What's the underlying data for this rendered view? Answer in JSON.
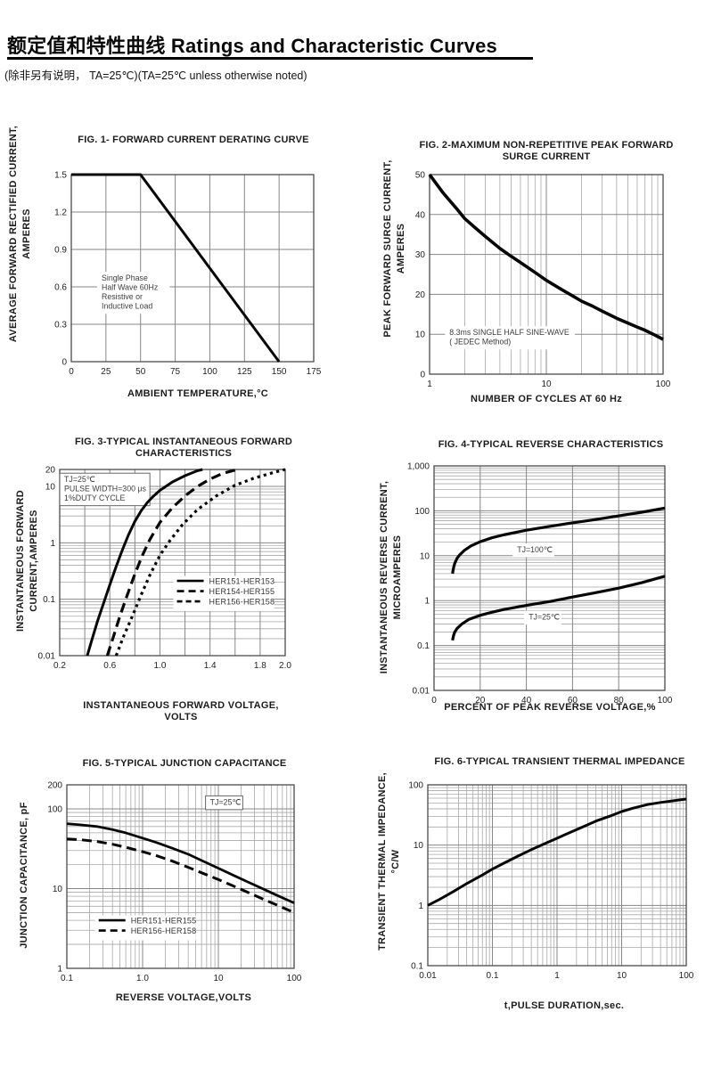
{
  "page": {
    "title": "额定值和特性曲线 Ratings and Characteristic Curves",
    "note": "(除非另有说明， TA=25℃)(TA=25℃  unless otherwise noted)"
  },
  "chart_data": [
    {
      "id": "fig1",
      "type": "line",
      "title": "FIG. 1- FORWARD CURRENT DERATING CURVE",
      "xlabel": "AMBIENT TEMPERATURE,°C",
      "ylabel": "AVERAGE FORWARD RECTIFIED CURRENT,\nAMPERES",
      "x": {
        "scale": "linear",
        "min": 0,
        "max": 175,
        "ticks": [
          0,
          25,
          50,
          75,
          100,
          125,
          150,
          175
        ],
        "labels": [
          "0",
          "25",
          "50",
          "75",
          "100",
          "125",
          "150",
          "175"
        ]
      },
      "y": {
        "scale": "linear",
        "min": 0,
        "max": 1.5,
        "ticks": [
          0,
          0.3,
          0.6,
          0.9,
          1.2,
          1.5
        ],
        "labels": [
          "0",
          "0.3",
          "0.6",
          "0.9",
          "1.2",
          "1.5"
        ]
      },
      "series": [
        {
          "name": "forward-current-derating",
          "dash": "solid",
          "width": 3,
          "points": [
            [
              0,
              1.5
            ],
            [
              50,
              1.5
            ],
            [
              150,
              0
            ]
          ]
        }
      ],
      "annotations": [
        {
          "fx": 0.125,
          "fy": 0.52,
          "box": false,
          "lines": [
            "Single Phase",
            "Half Wave 60Hz",
            "Resistive or",
            "Inductive Load"
          ]
        }
      ]
    },
    {
      "id": "fig2",
      "type": "line",
      "title": "FIG. 2-MAXIMUM NON-REPETITIVE PEAK FORWARD\nSURGE CURRENT",
      "xlabel": "NUMBER OF CYCLES AT 60 Hz",
      "ylabel": "PEAK FORWARD SURGE CURRENT,\nAMPERES",
      "x": {
        "scale": "log",
        "min": 1,
        "max": 100,
        "ticks": [
          1,
          10,
          100
        ],
        "labels": [
          "1",
          "10",
          "100"
        ]
      },
      "y": {
        "scale": "linear",
        "min": 0,
        "max": 50,
        "ticks": [
          0,
          10,
          20,
          30,
          40,
          50
        ],
        "labels": [
          "0",
          "10",
          "20",
          "30",
          "40",
          "50"
        ]
      },
      "series": [
        {
          "name": "peak-surge-current",
          "dash": "solid",
          "width": 3.6,
          "points": [
            [
              1,
              50
            ],
            [
              1.3,
              45.5
            ],
            [
              1.7,
              41.5
            ],
            [
              2,
              39
            ],
            [
              2.5,
              36.5
            ],
            [
              3,
              34.5
            ],
            [
              4,
              31.5
            ],
            [
              5,
              29.5
            ],
            [
              6,
              28
            ],
            [
              8,
              25.5
            ],
            [
              10,
              23.5
            ],
            [
              13,
              21.5
            ],
            [
              17,
              19.5
            ],
            [
              20,
              18.3
            ],
            [
              25,
              17
            ],
            [
              30,
              15.8
            ],
            [
              40,
              14
            ],
            [
              50,
              12.8
            ],
            [
              60,
              11.8
            ],
            [
              70,
              11
            ],
            [
              85,
              9.8
            ],
            [
              100,
              8.7
            ]
          ]
        }
      ],
      "annotations": [
        {
          "fx": 0.085,
          "fy": 0.76,
          "box": false,
          "lines": [
            "8.3ms SINGLE HALF SINE-WAVE",
            "( JEDEC Method)"
          ]
        }
      ]
    },
    {
      "id": "fig3",
      "type": "line",
      "title": "FIG. 3-TYPICAL INSTANTANEOUS FORWARD\nCHARACTERISTICS",
      "xlabel": "INSTANTANEOUS FORWARD VOLTAGE,\nVOLTS",
      "ylabel": "INSTANTANEOUS FORWARD\nCURRENT,AMPERES",
      "x": {
        "scale": "linear",
        "min": 0.2,
        "max": 2.0,
        "ticks": [
          0.2,
          0.6,
          1.0,
          1.4,
          1.8,
          2.0
        ],
        "labels": [
          "0.2",
          "0.6",
          "1.0",
          "1.4",
          "1.8",
          "2.0"
        ],
        "grid": [
          0.2,
          0.4,
          0.6,
          0.8,
          1.0,
          1.2,
          1.4,
          1.6,
          1.8,
          2.0
        ]
      },
      "y": {
        "scale": "log",
        "min": 0.01,
        "max": 20,
        "ticks": [
          0.01,
          0.1,
          1,
          10,
          20
        ],
        "labels": [
          "0.01",
          "0.1",
          "1",
          "10",
          "20"
        ]
      },
      "series": [
        {
          "name": "HER151-HER153",
          "dash": "solid",
          "width": 3,
          "points": [
            [
              0.42,
              0.01
            ],
            [
              0.46,
              0.02
            ],
            [
              0.5,
              0.04
            ],
            [
              0.55,
              0.085
            ],
            [
              0.6,
              0.18
            ],
            [
              0.65,
              0.38
            ],
            [
              0.7,
              0.75
            ],
            [
              0.75,
              1.4
            ],
            [
              0.8,
              2.4
            ],
            [
              0.85,
              3.7
            ],
            [
              0.9,
              5.2
            ],
            [
              0.95,
              6.8
            ],
            [
              1.0,
              8.5
            ],
            [
              1.1,
              12
            ],
            [
              1.2,
              15.5
            ],
            [
              1.3,
              19
            ],
            [
              1.34,
              20
            ]
          ]
        },
        {
          "name": "HER154-HER155",
          "dash": "dash",
          "width": 3.2,
          "points": [
            [
              0.58,
              0.01
            ],
            [
              0.63,
              0.022
            ],
            [
              0.68,
              0.05
            ],
            [
              0.74,
              0.12
            ],
            [
              0.8,
              0.28
            ],
            [
              0.86,
              0.6
            ],
            [
              0.92,
              1.15
            ],
            [
              1.0,
              2.3
            ],
            [
              1.1,
              4.2
            ],
            [
              1.2,
              6.8
            ],
            [
              1.3,
              10
            ],
            [
              1.4,
              13.5
            ],
            [
              1.5,
              17
            ],
            [
              1.6,
              19.5
            ],
            [
              1.62,
              20
            ]
          ]
        },
        {
          "name": "HER156-HER158",
          "dash": "dot",
          "width": 3.2,
          "points": [
            [
              0.65,
              0.01
            ],
            [
              0.71,
              0.022
            ],
            [
              0.78,
              0.05
            ],
            [
              0.85,
              0.12
            ],
            [
              0.92,
              0.27
            ],
            [
              1.0,
              0.6
            ],
            [
              1.08,
              1.1
            ],
            [
              1.18,
              2.1
            ],
            [
              1.3,
              3.9
            ],
            [
              1.45,
              6.8
            ],
            [
              1.6,
              10.5
            ],
            [
              1.75,
              14
            ],
            [
              1.9,
              17.5
            ],
            [
              2.0,
              20
            ]
          ]
        }
      ],
      "annotations": [
        {
          "fx": 0.02,
          "fy": 0.02,
          "box": true,
          "lines": [
            "TJ=25℃",
            "PULSE WIDTH=300 μs",
            "1%DUTY CYCLE"
          ]
        }
      ],
      "legend": {
        "fx": 0.52,
        "fy": 0.615,
        "entries": [
          {
            "dash": "solid",
            "label": "HER151-HER153"
          },
          {
            "dash": "dash",
            "label": "HER154-HER155"
          },
          {
            "dash": "dash2",
            "label": "HER156-HER158"
          }
        ]
      }
    },
    {
      "id": "fig4",
      "type": "line",
      "title": "FIG. 4-TYPICAL REVERSE CHARACTERISTICS",
      "xlabel": "PERCENT OF PEAK REVERSE VOLTAGE,%",
      "ylabel": "INSTANTANEOUS REVERSE CURRENT,\nMICROAMPERES",
      "x": {
        "scale": "linear",
        "min": 0,
        "max": 100,
        "ticks": [
          0,
          20,
          40,
          60,
          80,
          100
        ],
        "labels": [
          "0",
          "20",
          "40",
          "60",
          "80",
          "100"
        ]
      },
      "y": {
        "scale": "log",
        "min": 0.01,
        "max": 1000,
        "ticks": [
          0.01,
          0.1,
          1,
          10,
          100,
          1000
        ],
        "labels": [
          "0.01",
          "0.1",
          "1",
          "10",
          "100",
          "1,000"
        ]
      },
      "series": [
        {
          "name": "TJ=100C",
          "dash": "solid",
          "width": 3.2,
          "points": [
            [
              8,
              4
            ],
            [
              8.5,
              5.5
            ],
            [
              9,
              6.8
            ],
            [
              10,
              8.8
            ],
            [
              11,
              10.3
            ],
            [
              13,
              13
            ],
            [
              16,
              16.5
            ],
            [
              20,
              20.5
            ],
            [
              25,
              25
            ],
            [
              30,
              29
            ],
            [
              40,
              37
            ],
            [
              50,
              45
            ],
            [
              60,
              54
            ],
            [
              70,
              64
            ],
            [
              80,
              77
            ],
            [
              90,
              93
            ],
            [
              100,
              115
            ]
          ]
        },
        {
          "name": "TJ=25C",
          "dash": "solid",
          "width": 3.2,
          "points": [
            [
              8,
              0.13
            ],
            [
              8.5,
              0.17
            ],
            [
              9,
              0.2
            ],
            [
              10,
              0.24
            ],
            [
              12,
              0.3
            ],
            [
              15,
              0.38
            ],
            [
              20,
              0.47
            ],
            [
              25,
              0.55
            ],
            [
              30,
              0.63
            ],
            [
              40,
              0.78
            ],
            [
              50,
              0.95
            ],
            [
              60,
              1.2
            ],
            [
              70,
              1.5
            ],
            [
              80,
              1.9
            ],
            [
              90,
              2.5
            ],
            [
              100,
              3.5
            ]
          ]
        }
      ],
      "annotations": [
        {
          "fx": 0.36,
          "fy": 0.345,
          "box": false,
          "lines": [
            "TJ=100℃"
          ]
        },
        {
          "fx": 0.41,
          "fy": 0.645,
          "box": false,
          "lines": [
            "TJ=25℃"
          ]
        }
      ]
    },
    {
      "id": "fig5",
      "type": "line",
      "title": "FIG. 5-TYPICAL JUNCTION CAPACITANCE",
      "xlabel": "REVERSE VOLTAGE,VOLTS",
      "ylabel": "JUNCTION CAPACITANCE, pF",
      "x": {
        "scale": "log",
        "min": 0.1,
        "max": 100,
        "ticks": [
          0.1,
          1,
          10,
          100
        ],
        "labels": [
          "0.1",
          "1.0",
          "10",
          "100"
        ]
      },
      "y": {
        "scale": "log",
        "min": 1,
        "max": 200,
        "ticks": [
          1,
          10,
          100,
          200
        ],
        "labels": [
          "1",
          "10",
          "100",
          "200"
        ]
      },
      "series": [
        {
          "name": "HER151-HER155",
          "dash": "solid",
          "width": 2.8,
          "points": [
            [
              0.1,
              65
            ],
            [
              0.15,
              63
            ],
            [
              0.25,
              60
            ],
            [
              0.4,
              55
            ],
            [
              0.6,
              50
            ],
            [
              1,
              43
            ],
            [
              1.5,
              38
            ],
            [
              2.5,
              32
            ],
            [
              4,
              27
            ],
            [
              6,
              22.5
            ],
            [
              10,
              18
            ],
            [
              15,
              15
            ],
            [
              25,
              12
            ],
            [
              40,
              9.8
            ],
            [
              60,
              8.2
            ],
            [
              100,
              6.6
            ]
          ]
        },
        {
          "name": "HER156-HER158",
          "dash": "dash",
          "width": 3,
          "points": [
            [
              0.1,
              42
            ],
            [
              0.15,
              41
            ],
            [
              0.25,
              39
            ],
            [
              0.4,
              36
            ],
            [
              0.6,
              33
            ],
            [
              1,
              29
            ],
            [
              1.5,
              26
            ],
            [
              2.5,
              22
            ],
            [
              4,
              18.5
            ],
            [
              6,
              15.8
            ],
            [
              10,
              13
            ],
            [
              15,
              11
            ],
            [
              25,
              8.9
            ],
            [
              40,
              7.3
            ],
            [
              60,
              6.2
            ],
            [
              100,
              5
            ]
          ]
        }
      ],
      "annotations": [
        {
          "fx": 0.63,
          "fy": 0.06,
          "box": true,
          "lines": [
            "TJ=25℃"
          ]
        }
      ],
      "legend": {
        "fx": 0.14,
        "fy": 0.755,
        "entries": [
          {
            "dash": "solid",
            "label": "HER151-HER155"
          },
          {
            "dash": "dash",
            "label": "HER156-HER158"
          }
        ]
      }
    },
    {
      "id": "fig6",
      "type": "line",
      "title": "FIG. 6-TYPICAL TRANSIENT THERMAL IMPEDANCE",
      "xlabel": "t,PULSE DURATION,sec.",
      "ylabel": "TRANSIENT THERMAL IMPEDANCE,\n°C/W",
      "x": {
        "scale": "log",
        "min": 0.01,
        "max": 100,
        "ticks": [
          0.01,
          0.1,
          1,
          10,
          100
        ],
        "labels": [
          "0.01",
          "0.1",
          "1",
          "10",
          "100"
        ]
      },
      "y": {
        "scale": "log",
        "min": 0.1,
        "max": 100,
        "ticks": [
          0.1,
          1,
          10,
          100
        ],
        "labels": [
          "0.1",
          "1",
          "10",
          "100"
        ]
      },
      "series": [
        {
          "name": "transient-thermal-impedance",
          "dash": "solid",
          "width": 3,
          "points": [
            [
              0.01,
              1
            ],
            [
              0.015,
              1.25
            ],
            [
              0.025,
              1.7
            ],
            [
              0.04,
              2.3
            ],
            [
              0.07,
              3.2
            ],
            [
              0.1,
              4
            ],
            [
              0.15,
              5
            ],
            [
              0.25,
              6.6
            ],
            [
              0.4,
              8.4
            ],
            [
              0.7,
              11
            ],
            [
              1,
              13
            ],
            [
              1.5,
              15.8
            ],
            [
              2.5,
              20
            ],
            [
              4,
              25
            ],
            [
              7,
              31
            ],
            [
              10,
              36
            ],
            [
              15,
              41
            ],
            [
              25,
              47
            ],
            [
              40,
              51
            ],
            [
              60,
              54
            ],
            [
              100,
              58
            ]
          ]
        }
      ],
      "annotations": []
    }
  ]
}
